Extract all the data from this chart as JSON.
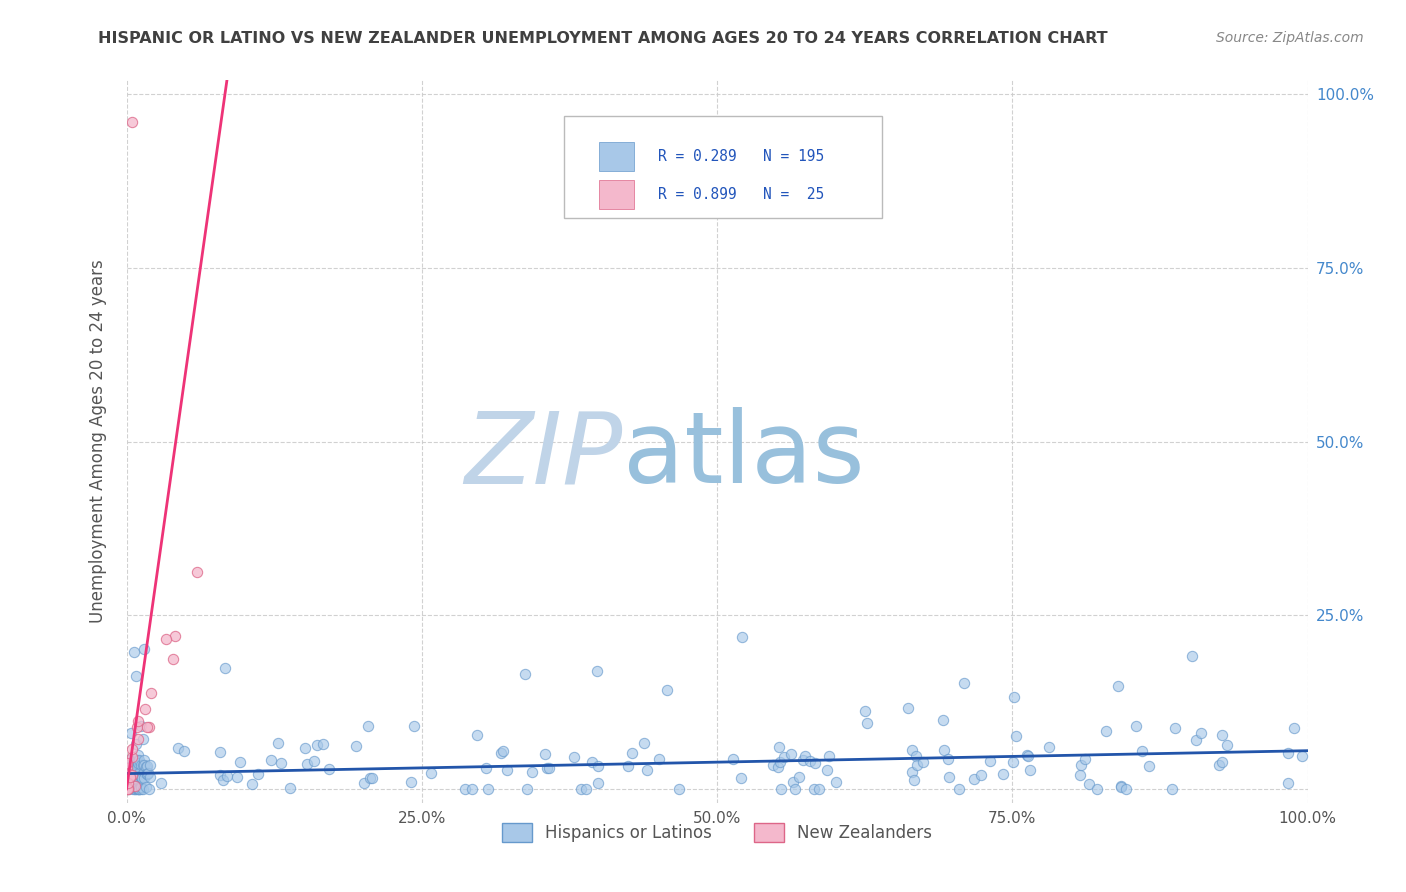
{
  "title": "HISPANIC OR LATINO VS NEW ZEALANDER UNEMPLOYMENT AMONG AGES 20 TO 24 YEARS CORRELATION CHART",
  "source": "Source: ZipAtlas.com",
  "legend1_label": "Hispanics or Latinos",
  "legend2_label": "New Zealanders",
  "R1": 0.289,
  "N1": 195,
  "R2": 0.899,
  "N2": 25,
  "blue_color": "#A8C8E8",
  "blue_edge_color": "#6699CC",
  "pink_color": "#F4B8CC",
  "pink_edge_color": "#DD6688",
  "blue_line_color": "#2255AA",
  "pink_line_color": "#EE3377",
  "watermark_zip": "ZIP",
  "watermark_atlas": "atlas",
  "watermark_color_zip": "#C0D4E8",
  "watermark_color_atlas": "#98C0DC",
  "background_color": "#FFFFFF",
  "grid_color": "#CCCCCC",
  "title_color": "#404040",
  "source_color": "#888888",
  "tick_color": "#4488CC",
  "ylabel_color": "#555555",
  "xlabel_color": "#555555",
  "legend_text_color": "#2255BB"
}
